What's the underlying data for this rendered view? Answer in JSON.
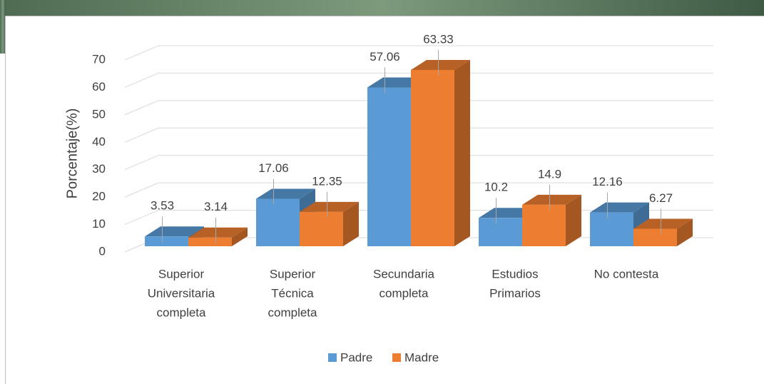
{
  "chart_data": {
    "type": "bar3d",
    "y_label": "Porcentaje(%)",
    "categories": [
      [
        "Superior",
        "Universitaria",
        "completa"
      ],
      [
        "Superior",
        "Técnica",
        "completa"
      ],
      [
        "Secundaria",
        "completa"
      ],
      [
        "Estudios",
        "Primarios"
      ],
      [
        "No contesta"
      ]
    ],
    "series": [
      {
        "name": "Padre",
        "color": "#5b9bd5",
        "values": [
          3.53,
          17.06,
          57.06,
          10.2,
          12.16
        ]
      },
      {
        "name": "Madre",
        "color": "#ed7d31",
        "values": [
          3.14,
          12.35,
          63.33,
          14.9,
          6.27
        ]
      }
    ],
    "ylim": [
      0,
      70
    ],
    "yticks": [
      0,
      10,
      20,
      30,
      40,
      50,
      60,
      70
    ],
    "grid": true,
    "legend": "bottom"
  }
}
